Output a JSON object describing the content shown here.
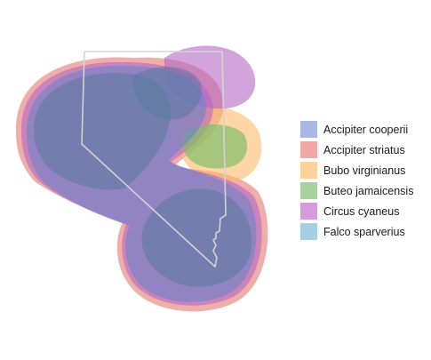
{
  "map": {
    "region": "state-outline",
    "ranges": [
      {
        "species": "Accipiter striatus",
        "color": "#e8938d",
        "opacity": 0.75
      },
      {
        "species": "Bubo virginianus",
        "color": "#fdb969",
        "opacity": 0.6
      },
      {
        "species": "Buteo jamaicensis",
        "color": "#7fbf6b",
        "opacity": 0.7
      },
      {
        "species": "Circus cyaneus",
        "color": "#b565c4",
        "opacity": 0.6
      },
      {
        "species": "Accipiter cooperii",
        "color": "#6b84c8",
        "opacity": 0.6
      },
      {
        "species": "Falco sparverius",
        "color": "#5a7aa0",
        "opacity": 0.55
      }
    ]
  },
  "legend": {
    "items": [
      {
        "label": "Accipiter cooperii",
        "color": "#a9b7e3"
      },
      {
        "label": "Accipiter striatus",
        "color": "#f1a8a4"
      },
      {
        "label": "Bubo virginianus",
        "color": "#fdd09c"
      },
      {
        "label": "Buteo jamaicensis",
        "color": "#a6d39d"
      },
      {
        "label": "Circus cyaneus",
        "color": "#d39ddc"
      },
      {
        "label": "Falco sparverius",
        "color": "#a3d0e3"
      }
    ]
  }
}
